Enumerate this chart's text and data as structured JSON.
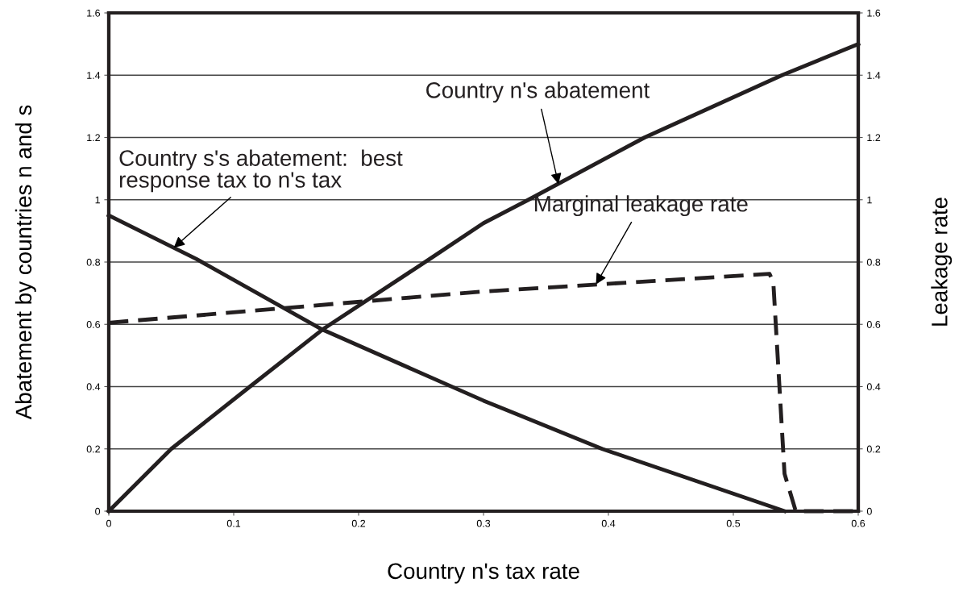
{
  "chart_data": {
    "type": "line",
    "xlabel": "Country n's tax rate",
    "ylabel": "Abatement by countries n and s",
    "y2label": "Leakage rate",
    "xlim": [
      0,
      0.6
    ],
    "xticks": [
      0,
      0.1,
      0.2,
      0.3,
      0.4,
      0.5,
      0.6
    ],
    "ylim": [
      0,
      1.6
    ],
    "yticks": [
      0,
      0.2,
      0.4,
      0.6,
      0.8,
      1,
      1.2,
      1.4,
      1.6
    ],
    "y2lim": [
      0,
      1.6
    ],
    "y2ticks": [
      0,
      0.2,
      0.4,
      0.6,
      0.8,
      1,
      1.2,
      1.4,
      1.6
    ],
    "grid": "y",
    "series": [
      {
        "color": "#231f20",
        "line_style": "solid",
        "x": [
          0,
          0.05,
          0.113,
          0.171,
          0.257,
          0.3,
          0.336,
          0.429,
          0.539,
          0.6
        ],
        "values": [
          0,
          0.2,
          0.4,
          0.583,
          0.81,
          0.925,
          1.0,
          1.2,
          1.4,
          1.5
        ]
      },
      {
        "color": "#231f20",
        "line_style": "solid",
        "x": [
          0,
          0.07,
          0.171,
          0.3,
          0.395,
          0.541
        ],
        "values": [
          0.95,
          0.81,
          0.583,
          0.355,
          0.2,
          0
        ]
      },
      {
        "color": "#231f20",
        "line_style": "dashed",
        "axis": "y2",
        "x": [
          0,
          0.298,
          0.529,
          0.532,
          0.541,
          0.55,
          0.6
        ],
        "values": [
          0.605,
          0.705,
          0.762,
          0.736,
          0.12,
          0,
          0
        ]
      }
    ],
    "annotations": [
      {
        "text": "Country n's abatement",
        "x": 0.36,
        "y": 1.05
      },
      {
        "text": "Country s's abatement:  best\nresponse tax to n's tax",
        "x": 0.052,
        "y": 0.846
      },
      {
        "text": "Marginal leakage rate",
        "x": 0.39,
        "y": 0.728
      }
    ]
  }
}
